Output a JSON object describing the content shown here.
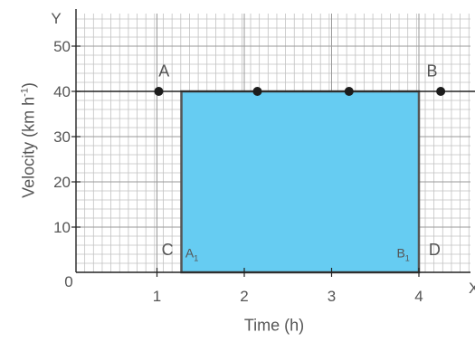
{
  "chart_data": {
    "type": "area",
    "title": "",
    "xlabel": "Time (h)",
    "ylabel": "Velocity (km h",
    "ylabel_sup": "-1",
    "ylabel_close": ")",
    "axis_x_name": "X",
    "axis_y_name": "Y",
    "origin_label": "0",
    "xlim": [
      0,
      4.6
    ],
    "ylim": [
      0,
      56
    ],
    "grid": true,
    "x_ticks": [
      1,
      2,
      3,
      4
    ],
    "x_tick_labels": [
      "1",
      "2",
      "3",
      "4"
    ],
    "y_ticks": [
      10,
      20,
      30,
      40,
      50
    ],
    "y_tick_labels": [
      "10",
      "20",
      "30",
      "40",
      "50"
    ],
    "line": {
      "y": 40
    },
    "shaded_region": {
      "x_start": 1.28,
      "x_end": 4.0,
      "y_start": 0,
      "y_end": 40,
      "color": "#66ccf2"
    },
    "points": [
      {
        "x": 1.02,
        "y": 40
      },
      {
        "x": 2.15,
        "y": 40
      },
      {
        "x": 3.2,
        "y": 40
      },
      {
        "x": 4.25,
        "y": 40
      }
    ],
    "annotations": [
      {
        "text": "A",
        "x": 1.08,
        "y": 44.5
      },
      {
        "text": "B",
        "x": 4.15,
        "y": 44.5
      },
      {
        "text": "C",
        "x": 1.12,
        "y": 5
      },
      {
        "text": "D",
        "x": 4.18,
        "y": 5
      },
      {
        "text": "A",
        "x": 1.4,
        "y": 4.5,
        "subscript": "1"
      },
      {
        "text": "B",
        "x": 3.82,
        "y": 4.5,
        "subscript": "1"
      }
    ],
    "colors": {
      "grid": "#c2c2c2",
      "axis": "#222222",
      "line": "#222222",
      "fill": "#66ccf2",
      "text": "#555555"
    }
  }
}
